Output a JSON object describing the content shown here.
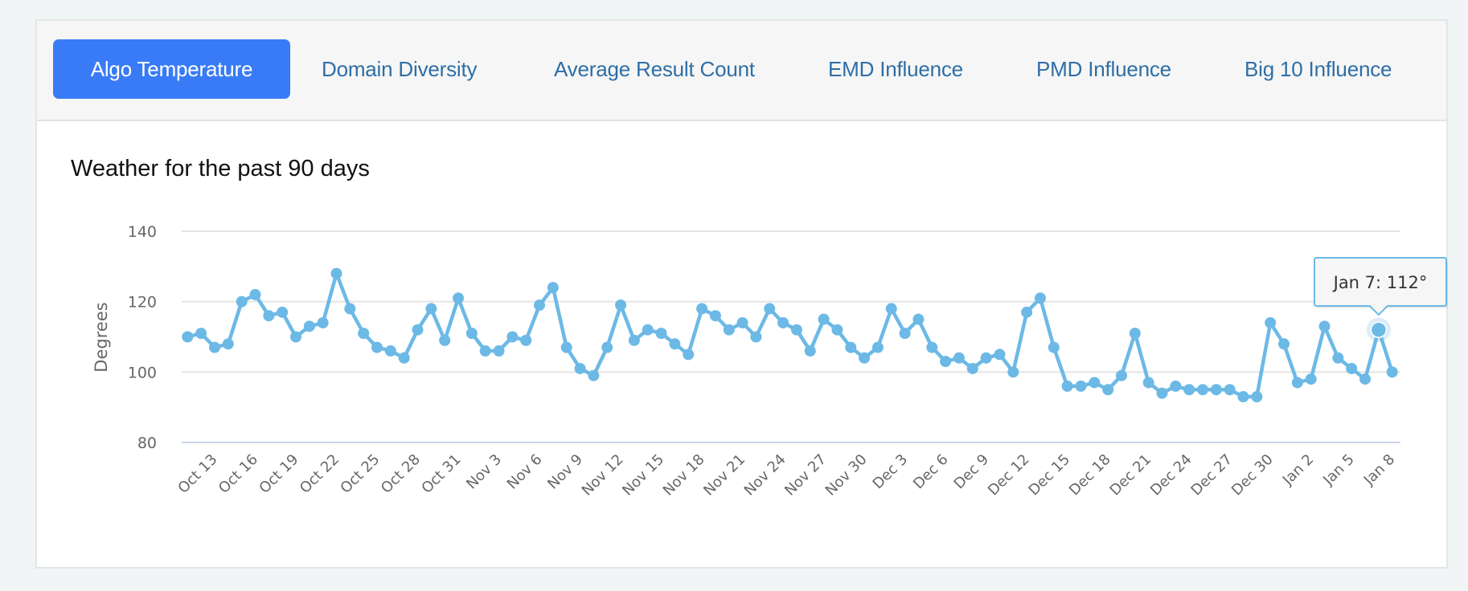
{
  "tabs": [
    {
      "label": "Algo Temperature",
      "active": true
    },
    {
      "label": "Domain Diversity",
      "active": false
    },
    {
      "label": "Average Result Count",
      "active": false
    },
    {
      "label": "EMD Influence",
      "active": false
    },
    {
      "label": "PMD Influence",
      "active": false
    },
    {
      "label": "Big 10 Influence",
      "active": false
    }
  ],
  "colors": {
    "active_tab": "#397bf6",
    "tab_text": "#2e6ea6",
    "series_line": "#6cb9e6"
  },
  "chart_data": {
    "type": "line",
    "title": "Weather for the past 90 days",
    "xlabel": "",
    "ylabel": "Degrees",
    "ylim": [
      80,
      140
    ],
    "yticks": [
      80,
      100,
      120,
      140
    ],
    "grid": true,
    "legend": "none",
    "x": [
      "Oct 11",
      "Oct 12",
      "Oct 13",
      "Oct 14",
      "Oct 15",
      "Oct 16",
      "Oct 17",
      "Oct 18",
      "Oct 19",
      "Oct 20",
      "Oct 21",
      "Oct 22",
      "Oct 23",
      "Oct 24",
      "Oct 25",
      "Oct 26",
      "Oct 27",
      "Oct 28",
      "Oct 29",
      "Oct 30",
      "Oct 31",
      "Nov 1",
      "Nov 2",
      "Nov 3",
      "Nov 4",
      "Nov 5",
      "Nov 6",
      "Nov 7",
      "Nov 8",
      "Nov 9",
      "Nov 10",
      "Nov 11",
      "Nov 12",
      "Nov 13",
      "Nov 14",
      "Nov 15",
      "Nov 16",
      "Nov 17",
      "Nov 18",
      "Nov 19",
      "Nov 20",
      "Nov 21",
      "Nov 22",
      "Nov 23",
      "Nov 24",
      "Nov 25",
      "Nov 26",
      "Nov 27",
      "Nov 28",
      "Nov 29",
      "Nov 30",
      "Dec 1",
      "Dec 2",
      "Dec 3",
      "Dec 4",
      "Dec 5",
      "Dec 6",
      "Dec 7",
      "Dec 8",
      "Dec 9",
      "Dec 10",
      "Dec 11",
      "Dec 12",
      "Dec 13",
      "Dec 14",
      "Dec 15",
      "Dec 16",
      "Dec 17",
      "Dec 18",
      "Dec 19",
      "Dec 20",
      "Dec 21",
      "Dec 22",
      "Dec 23",
      "Dec 24",
      "Dec 25",
      "Dec 26",
      "Dec 27",
      "Dec 28",
      "Dec 29",
      "Dec 30",
      "Dec 31",
      "Jan 1",
      "Jan 2",
      "Jan 3",
      "Jan 4",
      "Jan 5",
      "Jan 6",
      "Jan 7",
      "Jan 8"
    ],
    "xtick_labels": [
      "Oct 13",
      "Oct 16",
      "Oct 19",
      "Oct 22",
      "Oct 25",
      "Oct 28",
      "Oct 31",
      "Nov 3",
      "Nov 6",
      "Nov 9",
      "Nov 12",
      "Nov 15",
      "Nov 18",
      "Nov 21",
      "Nov 24",
      "Nov 27",
      "Nov 30",
      "Dec 3",
      "Dec 6",
      "Dec 9",
      "Dec 12",
      "Dec 15",
      "Dec 18",
      "Dec 21",
      "Dec 24",
      "Dec 27",
      "Dec 30",
      "Jan 2",
      "Jan 5",
      "Jan 8"
    ],
    "series": [
      {
        "name": "Degrees",
        "values": [
          110,
          111,
          107,
          108,
          120,
          122,
          116,
          117,
          110,
          113,
          114,
          128,
          118,
          111,
          107,
          106,
          104,
          112,
          118,
          109,
          121,
          111,
          106,
          106,
          110,
          109,
          119,
          124,
          107,
          101,
          99,
          107,
          119,
          109,
          112,
          111,
          108,
          105,
          118,
          116,
          112,
          114,
          110,
          118,
          114,
          112,
          106,
          115,
          112,
          107,
          104,
          107,
          118,
          111,
          115,
          107,
          103,
          104,
          101,
          104,
          105,
          100,
          117,
          121,
          107,
          96,
          96,
          97,
          95,
          99,
          111,
          97,
          94,
          96,
          95,
          95,
          95,
          95,
          93,
          93,
          114,
          108,
          97,
          98,
          113,
          104,
          101,
          98,
          112,
          100
        ]
      }
    ],
    "tooltip": {
      "index": 88,
      "text": "Jan 7: 112°"
    }
  }
}
